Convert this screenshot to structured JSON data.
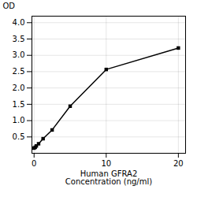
{
  "chart_data": {
    "type": "line",
    "x": [
      0,
      0.156,
      0.313,
      0.625,
      1.25,
      2.5,
      5,
      10,
      20
    ],
    "values": [
      0.158,
      0.183,
      0.224,
      0.291,
      0.446,
      0.714,
      1.442,
      2.567,
      3.224
    ],
    "xlabel": "Human GFRA2\nConcentration (ng/ml)",
    "ylabel": "OD",
    "xlim": [
      -0.3,
      21
    ],
    "ylim": [
      0,
      4.2
    ],
    "xticks": [
      0,
      10,
      20
    ],
    "yticks": [
      0.5,
      {
        "value": 1.0,
        "label": "1.0"
      },
      1.5,
      {
        "value": 2.0,
        "label": "2.0"
      },
      2.5,
      {
        "value": 3.0,
        "label": "3.0"
      },
      3.5,
      {
        "value": 4.0,
        "label": "4.0"
      }
    ],
    "grid": true,
    "marker": "square"
  }
}
